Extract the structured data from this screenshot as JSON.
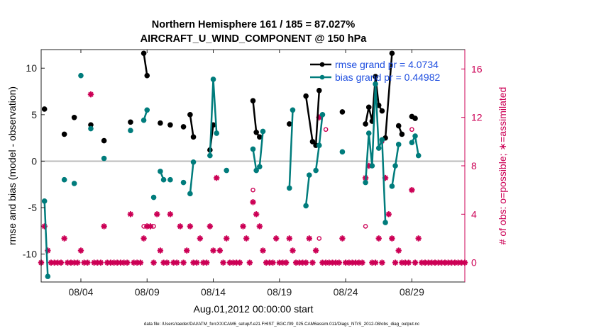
{
  "chart_data": {
    "type": "line",
    "title_line1": "Northern Hemisphere 161 / 185 = 87.027%",
    "title_line2": "AIRCRAFT_U_WIND_COMPONENT @ 150 hPa",
    "xlabel": "Aug.01,2012 00:00:00 start",
    "ylabel_left": "rmse and bias (model - observation)",
    "ylabel_right": "# of obs: o=possible; ∗=assimilated",
    "footer": "data file: /Users/raeder/DAI/ATM_forcXX/CAM6_setup/f.e21.FHIST_BGC.f09_025.CAM6assim.011/Diags_NTrS_2012-08/obs_diag_output.nc",
    "xlim": [
      1.0,
      33.0
    ],
    "ylim_left": [
      -13.0,
      12.0
    ],
    "ylim_right": [
      -1.6,
      17.6
    ],
    "x_ticks": [
      {
        "value": 4,
        "label": "08/04"
      },
      {
        "value": 9,
        "label": "08/09"
      },
      {
        "value": 14,
        "label": "08/14"
      },
      {
        "value": 19,
        "label": "08/19"
      },
      {
        "value": 24,
        "label": "08/24"
      },
      {
        "value": 29,
        "label": "08/29"
      }
    ],
    "y_ticks_left": [
      {
        "value": 10,
        "label": "10"
      },
      {
        "value": 5,
        "label": "5"
      },
      {
        "value": 0,
        "label": "0"
      },
      {
        "value": -5,
        "label": "-5"
      },
      {
        "value": -10,
        "label": "-10"
      }
    ],
    "y_ticks_right": [
      {
        "value": 16,
        "label": "16"
      },
      {
        "value": 12,
        "label": "12"
      },
      {
        "value": 8,
        "label": "8"
      },
      {
        "value": 4,
        "label": "4"
      },
      {
        "value": 0,
        "label": "0"
      }
    ],
    "colors": {
      "rmse": "#000000",
      "bias": "#007c7c",
      "obs": "#cc0055",
      "zero_line": "#bbbbbb",
      "axis": "#222222"
    },
    "legend": [
      {
        "series": "rmse",
        "label": "rmse grand pr = 4.0734"
      },
      {
        "series": "bias",
        "label": "bias grand pr = 0.44982"
      }
    ],
    "series": [
      {
        "name": "rmse",
        "points": [
          [
            1.25,
            5.6
          ],
          [
            2.75,
            2.9
          ],
          [
            3.5,
            4.7
          ],
          [
            4.75,
            3.9
          ],
          [
            5.75,
            2.2
          ],
          [
            7.75,
            4.2
          ],
          [
            8.75,
            11.6
          ],
          [
            9.0,
            9.2
          ],
          [
            10.0,
            4.1
          ],
          [
            10.75,
            3.9
          ],
          [
            11.75,
            3.7
          ],
          [
            12.25,
            5.0
          ],
          [
            12.5,
            2.6
          ],
          [
            13.75,
            1.2
          ],
          [
            14.0,
            3.9
          ],
          [
            17.0,
            6.5
          ],
          [
            17.25,
            3.1
          ],
          [
            17.5,
            2.6
          ],
          [
            19.75,
            4.0
          ],
          [
            21.0,
            7.0
          ],
          [
            21.5,
            2.1
          ],
          [
            21.75,
            1.7
          ],
          [
            22.0,
            7.6
          ],
          [
            23.75,
            5.3
          ],
          [
            25.5,
            4.0
          ],
          [
            25.75,
            5.8
          ],
          [
            26.0,
            4.3
          ],
          [
            26.25,
            9.1
          ],
          [
            26.5,
            6.0
          ],
          [
            26.75,
            5.4
          ],
          [
            27.0,
            2.5
          ],
          [
            27.5,
            11.6
          ],
          [
            28.0,
            3.8
          ],
          [
            28.25,
            2.9
          ],
          [
            29.0,
            4.8
          ],
          [
            29.25,
            4.6
          ]
        ],
        "segments": [
          [
            [
              8.75,
              11.6
            ],
            [
              9.0,
              9.2
            ]
          ],
          [
            [
              12.25,
              5.0
            ],
            [
              12.5,
              2.6
            ]
          ],
          [
            [
              13.75,
              1.2
            ],
            [
              14.0,
              3.9
            ]
          ],
          [
            [
              17.0,
              6.5
            ],
            [
              17.25,
              3.1
            ],
            [
              17.5,
              2.6
            ]
          ],
          [
            [
              21.0,
              7.0
            ],
            [
              21.5,
              2.1
            ],
            [
              21.75,
              1.7
            ],
            [
              22.0,
              7.6
            ]
          ],
          [
            [
              25.5,
              4.0
            ],
            [
              25.75,
              5.8
            ],
            [
              26.0,
              4.3
            ],
            [
              26.25,
              9.1
            ],
            [
              26.5,
              6.0
            ],
            [
              26.75,
              5.4
            ]
          ],
          [
            [
              27.0,
              2.5
            ],
            [
              27.5,
              11.6
            ]
          ],
          [
            [
              28.0,
              3.8
            ],
            [
              28.25,
              2.9
            ]
          ],
          [
            [
              29.0,
              4.8
            ],
            [
              29.25,
              4.6
            ]
          ]
        ]
      },
      {
        "name": "bias",
        "points": [
          [
            1.25,
            -4.3
          ],
          [
            1.5,
            -12.4
          ],
          [
            2.75,
            -2.0
          ],
          [
            3.5,
            -2.4
          ],
          [
            4.0,
            9.2
          ],
          [
            4.75,
            3.5
          ],
          [
            5.75,
            0.3
          ],
          [
            7.75,
            3.3
          ],
          [
            8.75,
            4.4
          ],
          [
            9.0,
            5.5
          ],
          [
            9.5,
            -3.9
          ],
          [
            10.0,
            -1.1
          ],
          [
            10.25,
            -2.0
          ],
          [
            10.75,
            -2.0
          ],
          [
            11.75,
            -2.3
          ],
          [
            12.25,
            -3.5
          ],
          [
            12.5,
            -0.1
          ],
          [
            13.75,
            0.6
          ],
          [
            14.0,
            8.8
          ],
          [
            14.25,
            3.0
          ],
          [
            15.0,
            -1.0
          ],
          [
            17.0,
            1.3
          ],
          [
            17.25,
            -1.0
          ],
          [
            17.5,
            -0.6
          ],
          [
            17.75,
            3.2
          ],
          [
            19.75,
            -2.9
          ],
          [
            20.0,
            5.5
          ],
          [
            21.0,
            -4.8
          ],
          [
            21.25,
            -1.5
          ],
          [
            21.75,
            -1.0
          ],
          [
            22.0,
            1.7
          ],
          [
            22.25,
            5.0
          ],
          [
            23.75,
            1.0
          ],
          [
            25.5,
            -2.3
          ],
          [
            25.75,
            3.0
          ],
          [
            26.0,
            -0.5
          ],
          [
            26.25,
            8.3
          ],
          [
            26.5,
            1.4
          ],
          [
            26.75,
            2.3
          ],
          [
            27.0,
            -6.6
          ],
          [
            27.5,
            -2.7
          ],
          [
            27.75,
            -0.5
          ],
          [
            28.0,
            1.8
          ],
          [
            29.0,
            2.0
          ],
          [
            29.25,
            2.7
          ],
          [
            29.5,
            0.6
          ]
        ],
        "segments": [
          [
            [
              1.25,
              -4.3
            ],
            [
              1.5,
              -12.4
            ]
          ],
          [
            [
              8.75,
              4.4
            ],
            [
              9.0,
              5.5
            ]
          ],
          [
            [
              10.0,
              -1.1
            ],
            [
              10.25,
              -2.0
            ]
          ],
          [
            [
              12.25,
              -3.5
            ],
            [
              12.5,
              -0.1
            ]
          ],
          [
            [
              13.75,
              0.6
            ],
            [
              14.0,
              8.8
            ],
            [
              14.25,
              3.0
            ]
          ],
          [
            [
              17.0,
              1.3
            ],
            [
              17.25,
              -1.0
            ],
            [
              17.5,
              -0.6
            ],
            [
              17.75,
              3.2
            ]
          ],
          [
            [
              19.75,
              -2.9
            ],
            [
              20.0,
              5.5
            ]
          ],
          [
            [
              21.0,
              -4.8
            ],
            [
              21.25,
              -1.5
            ]
          ],
          [
            [
              21.75,
              -1.0
            ],
            [
              22.0,
              1.7
            ],
            [
              22.25,
              5.0
            ]
          ],
          [
            [
              25.5,
              -2.3
            ],
            [
              25.75,
              3.0
            ],
            [
              26.0,
              -0.5
            ],
            [
              26.25,
              8.3
            ],
            [
              26.5,
              1.4
            ],
            [
              26.75,
              2.3
            ],
            [
              27.0,
              -6.6
            ]
          ],
          [
            [
              27.5,
              -2.7
            ],
            [
              27.75,
              -0.5
            ],
            [
              28.0,
              1.8
            ]
          ],
          [
            [
              29.0,
              2.0
            ],
            [
              29.25,
              2.7
            ],
            [
              29.5,
              0.6
            ]
          ]
        ]
      }
    ],
    "obs_assimilated": [
      [
        1.0,
        0
      ],
      [
        1.25,
        3
      ],
      [
        1.5,
        1
      ],
      [
        1.75,
        0
      ],
      [
        2.0,
        0
      ],
      [
        2.25,
        0
      ],
      [
        2.5,
        0
      ],
      [
        2.75,
        2
      ],
      [
        3.0,
        0
      ],
      [
        3.25,
        0
      ],
      [
        3.5,
        0
      ],
      [
        3.75,
        0
      ],
      [
        4.0,
        1
      ],
      [
        4.25,
        0
      ],
      [
        4.5,
        0
      ],
      [
        4.75,
        13.9
      ],
      [
        5.0,
        0
      ],
      [
        5.25,
        0
      ],
      [
        5.5,
        0
      ],
      [
        5.75,
        3
      ],
      [
        6.0,
        0
      ],
      [
        6.25,
        0
      ],
      [
        6.5,
        0
      ],
      [
        6.75,
        0
      ],
      [
        7.0,
        0
      ],
      [
        7.25,
        0
      ],
      [
        7.5,
        0
      ],
      [
        7.75,
        4
      ],
      [
        8.0,
        0
      ],
      [
        8.25,
        0
      ],
      [
        8.5,
        0
      ],
      [
        8.75,
        2
      ],
      [
        9.0,
        3
      ],
      [
        9.25,
        3
      ],
      [
        9.5,
        0
      ],
      [
        9.75,
        4
      ],
      [
        10.0,
        1
      ],
      [
        10.25,
        0
      ],
      [
        10.5,
        0
      ],
      [
        10.75,
        4
      ],
      [
        11.0,
        0
      ],
      [
        11.25,
        0
      ],
      [
        11.5,
        3
      ],
      [
        11.75,
        0
      ],
      [
        12.0,
        1
      ],
      [
        12.25,
        3
      ],
      [
        12.5,
        0
      ],
      [
        12.75,
        0
      ],
      [
        13.0,
        2
      ],
      [
        13.25,
        0
      ],
      [
        13.5,
        0
      ],
      [
        13.75,
        3
      ],
      [
        14.0,
        1
      ],
      [
        14.25,
        7
      ],
      [
        14.5,
        1
      ],
      [
        14.75,
        0
      ],
      [
        15.0,
        2
      ],
      [
        15.25,
        0
      ],
      [
        15.5,
        0
      ],
      [
        15.75,
        0
      ],
      [
        16.0,
        0
      ],
      [
        16.25,
        3
      ],
      [
        16.5,
        2
      ],
      [
        16.75,
        0
      ],
      [
        17.0,
        5
      ],
      [
        17.25,
        4
      ],
      [
        17.5,
        3
      ],
      [
        17.75,
        1
      ],
      [
        18.0,
        0
      ],
      [
        18.25,
        0
      ],
      [
        18.5,
        0
      ],
      [
        18.75,
        2
      ],
      [
        19.0,
        0
      ],
      [
        19.25,
        0
      ],
      [
        19.5,
        0
      ],
      [
        19.75,
        2
      ],
      [
        20.0,
        1
      ],
      [
        20.25,
        0
      ],
      [
        20.5,
        0
      ],
      [
        20.75,
        0
      ],
      [
        21.0,
        0
      ],
      [
        21.25,
        2
      ],
      [
        21.5,
        0
      ],
      [
        21.75,
        1
      ],
      [
        22.0,
        12
      ],
      [
        22.25,
        0
      ],
      [
        22.5,
        0
      ],
      [
        22.75,
        0
      ],
      [
        23.0,
        0
      ],
      [
        23.25,
        0
      ],
      [
        23.5,
        0
      ],
      [
        23.75,
        2
      ],
      [
        24.0,
        0
      ],
      [
        24.25,
        0
      ],
      [
        24.5,
        0
      ],
      [
        24.75,
        0
      ],
      [
        25.0,
        0
      ],
      [
        25.25,
        0
      ],
      [
        25.5,
        7
      ],
      [
        25.75,
        8
      ],
      [
        26.0,
        0
      ],
      [
        26.25,
        0
      ],
      [
        26.5,
        2
      ],
      [
        26.75,
        0
      ],
      [
        27.0,
        7
      ],
      [
        27.25,
        4
      ],
      [
        27.5,
        2
      ],
      [
        27.75,
        0
      ],
      [
        28.0,
        1
      ],
      [
        28.25,
        0
      ],
      [
        28.5,
        0
      ],
      [
        28.75,
        0
      ],
      [
        29.0,
        6
      ],
      [
        29.25,
        0
      ],
      [
        29.5,
        2
      ],
      [
        29.75,
        0
      ],
      [
        30.0,
        0
      ],
      [
        30.25,
        0
      ],
      [
        30.5,
        0
      ],
      [
        30.75,
        0
      ],
      [
        31.0,
        0
      ],
      [
        31.25,
        0
      ],
      [
        31.5,
        0
      ],
      [
        31.75,
        0
      ],
      [
        32.0,
        0
      ],
      [
        32.25,
        0
      ],
      [
        32.5,
        0
      ],
      [
        32.75,
        0
      ],
      [
        33.0,
        0
      ]
    ],
    "obs_possible": [
      [
        8.75,
        3
      ],
      [
        9.5,
        3
      ],
      [
        17.0,
        6
      ],
      [
        22.5,
        11
      ],
      [
        22.0,
        2
      ],
      [
        25.5,
        3
      ],
      [
        26.75,
        10
      ],
      [
        27.5,
        2
      ],
      [
        29.0,
        11
      ]
    ]
  }
}
